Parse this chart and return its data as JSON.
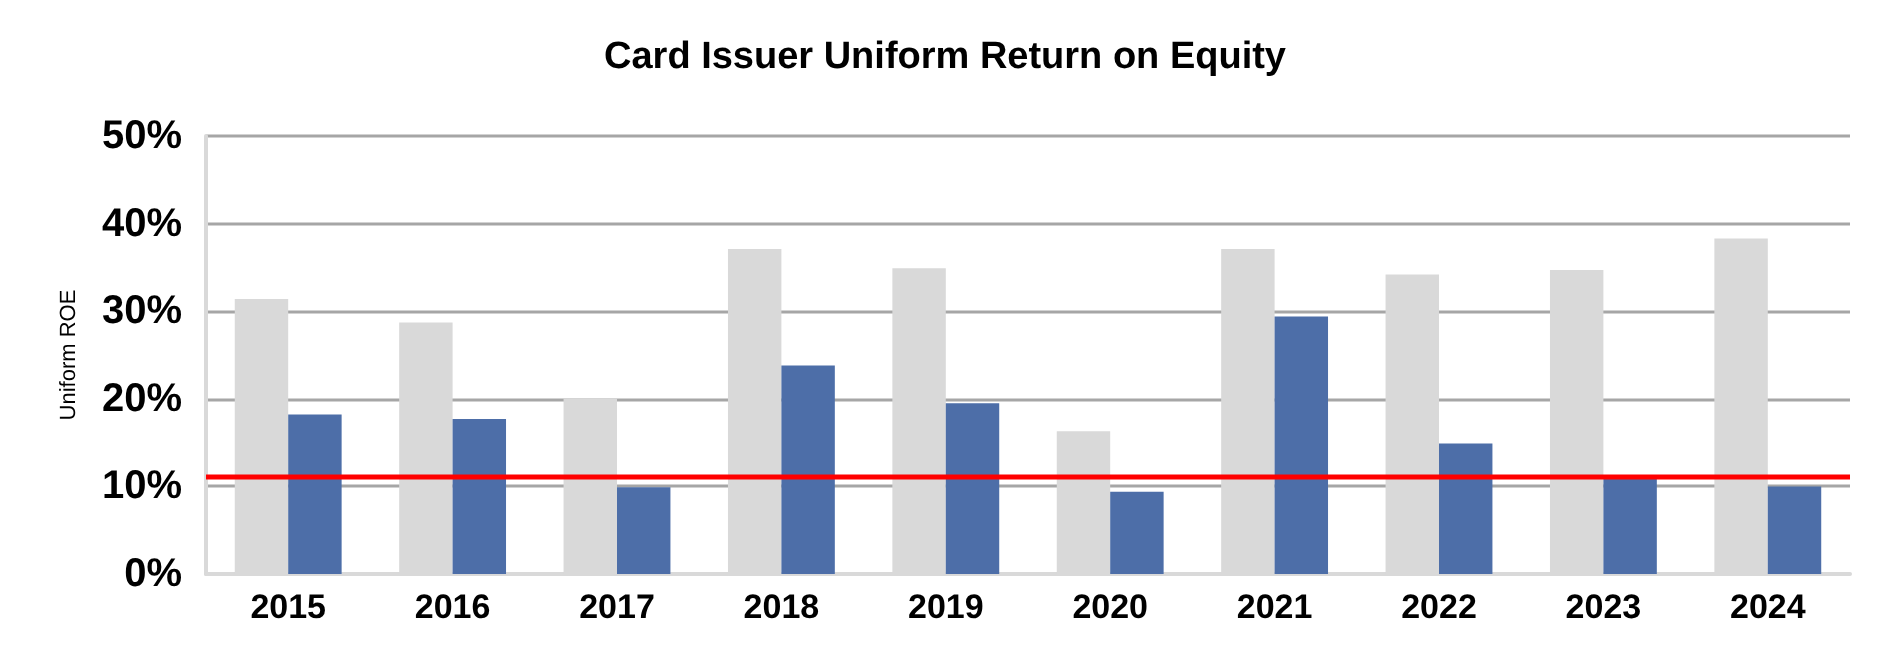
{
  "chart_data": {
    "type": "bar",
    "title": "Card Issuer Uniform Return on Equity",
    "ylabel": "Uniform ROE",
    "categories": [
      "2015",
      "2016",
      "2017",
      "2018",
      "2019",
      "2020",
      "2021",
      "2022",
      "2023",
      "2024"
    ],
    "series": [
      {
        "color": "#d9d9d9",
        "values": [
          31.4,
          28.7,
          20.0,
          37.1,
          34.9,
          16.3,
          37.1,
          34.2,
          34.7,
          38.3
        ]
      },
      {
        "color": "#4d6ea8",
        "values": [
          18.2,
          17.7,
          9.9,
          23.8,
          19.5,
          9.4,
          29.4,
          14.9,
          10.9,
          10.0
        ]
      }
    ],
    "ylim": [
      0,
      50
    ],
    "yticks": [
      {
        "value": 0,
        "label": "0%"
      },
      {
        "value": 10,
        "label": "10%"
      },
      {
        "value": 20,
        "label": "20%"
      },
      {
        "value": 30,
        "label": "30%"
      },
      {
        "value": 40,
        "label": "40%"
      },
      {
        "value": 50,
        "label": "50%"
      }
    ],
    "ref_lines": [
      {
        "axis": "y",
        "value": 11.1,
        "color": "#ff0000",
        "line_style": "solid"
      }
    ],
    "grid": "y"
  }
}
